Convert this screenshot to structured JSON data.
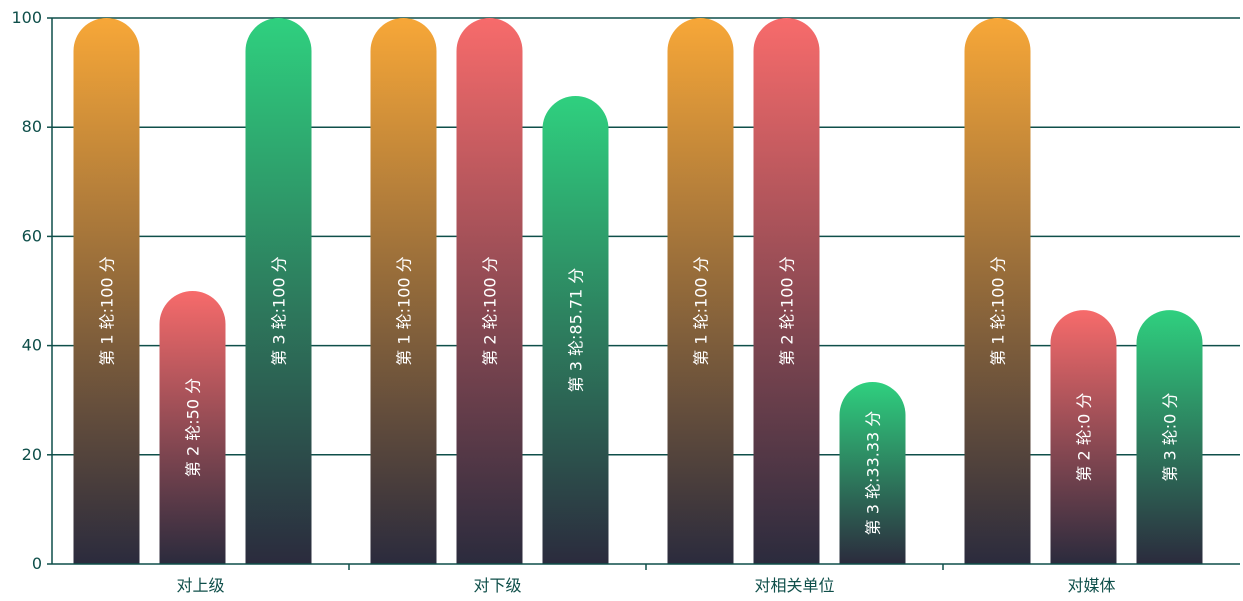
{
  "chart_data": {
    "type": "bar",
    "categories": [
      "对上级",
      "对下级",
      "对相关单位",
      "对媒体"
    ],
    "series": [
      {
        "values": [
          100,
          100,
          100,
          100
        ],
        "labels": [
          "第 1 轮:100 分",
          "第 1 轮:100 分",
          "第 1 轮:100 分",
          "第 1 轮:100 分"
        ],
        "color_top": "#f7a738",
        "color_bottom": "#2b2b3d"
      },
      {
        "values": [
          50,
          100,
          100,
          0
        ],
        "labels": [
          "第 2 轮:50 分",
          "第 2 轮:100 分",
          "第 2 轮:100 分",
          "第 2 轮:0 分"
        ],
        "color_top": "#f76b6b",
        "color_bottom": "#2b2b3d"
      },
      {
        "values": [
          100,
          85.71,
          33.33,
          0
        ],
        "labels": [
          "第 3 轮:100 分",
          "第 3 轮:85.71 分",
          "第 3 轮:33.33 分",
          "第 3 轮:0 分"
        ],
        "color_top": "#2fd07f",
        "color_bottom": "#2b2b3d"
      }
    ],
    "ylim": [
      0,
      100
    ],
    "yticks": [
      0,
      20,
      40,
      60,
      80,
      100
    ],
    "grid": true,
    "axis_color": "#0f4f4a"
  }
}
